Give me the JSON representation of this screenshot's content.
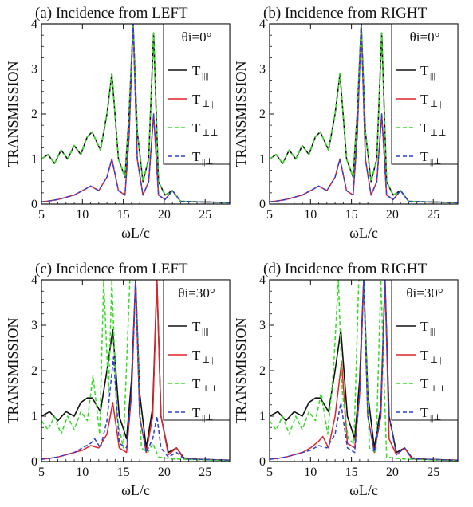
{
  "chart_data": [
    {
      "type": "line",
      "title": "(a) Incidence from LEFT",
      "xlabel": "ωL/c",
      "ylabel": "TRANSMISSION",
      "xlim": [
        5,
        28
      ],
      "ylim": [
        0,
        4
      ],
      "xticks": [
        5,
        10,
        15,
        20,
        25
      ],
      "yticks": [
        0,
        1,
        2,
        3,
        4
      ],
      "legend_header": "θi=0°",
      "legend_position": "top-right",
      "series": [
        {
          "name": "T∥∥",
          "label_main": "T",
          "label_sub": "||||",
          "color": "#111111",
          "dash": "solid",
          "x": [
            5,
            5.8,
            6.6,
            7.4,
            8.2,
            9.0,
            9.8,
            10.6,
            11.2,
            12.2,
            13.0,
            13.6,
            14.4,
            15.2,
            15.7,
            16.2,
            16.7,
            17.4,
            18.1,
            18.7,
            19.3,
            20.1,
            21.0,
            22.0,
            24.0,
            26.0,
            28.0
          ],
          "y": [
            1.0,
            1.1,
            0.9,
            1.2,
            1.0,
            1.3,
            1.1,
            1.5,
            1.6,
            1.2,
            2.0,
            2.9,
            1.0,
            0.6,
            2.0,
            4.0,
            1.6,
            0.5,
            1.0,
            3.8,
            0.5,
            0.2,
            0.3,
            0.06,
            0.05,
            0.04,
            0.03
          ]
        },
        {
          "name": "T⊥∥",
          "label_main": "T",
          "label_sub": "⊥||",
          "color": "#e0242a",
          "dash": "solid",
          "x": [
            5,
            6,
            7,
            8,
            9,
            10,
            11,
            12,
            13,
            13.6,
            14.4,
            15.2,
            15.7,
            16.2,
            16.7,
            17.4,
            18.1,
            18.7,
            19.3,
            20.1,
            21.0,
            22.0,
            24.0,
            26.0,
            28.0
          ],
          "y": [
            0.05,
            0.07,
            0.1,
            0.15,
            0.2,
            0.3,
            0.4,
            0.3,
            0.6,
            1.0,
            0.3,
            0.2,
            1.5,
            4.0,
            1.0,
            0.2,
            0.5,
            2.0,
            0.2,
            0.1,
            0.3,
            0.06,
            0.05,
            0.04,
            0.03
          ]
        },
        {
          "name": "T⊥⊥",
          "label_main": "T",
          "label_sub": "⊥⊥",
          "color": "#33dd22",
          "dash": "dashed",
          "x": [
            5,
            5.8,
            6.6,
            7.4,
            8.2,
            9.0,
            9.8,
            10.6,
            11.2,
            12.2,
            13.0,
            13.6,
            14.4,
            15.2,
            15.7,
            16.2,
            16.7,
            17.4,
            18.1,
            18.7,
            19.3,
            20.1,
            21.0,
            22.0,
            24.0,
            26.0,
            28.0
          ],
          "y": [
            1.0,
            1.1,
            0.9,
            1.2,
            1.0,
            1.3,
            1.1,
            1.5,
            1.6,
            1.2,
            2.0,
            2.9,
            1.0,
            0.6,
            2.0,
            4.0,
            1.6,
            0.5,
            1.0,
            3.8,
            0.5,
            0.2,
            0.3,
            0.06,
            0.05,
            0.04,
            0.03
          ]
        },
        {
          "name": "T∥⊥",
          "label_main": "T",
          "label_sub": "||⊥",
          "color": "#2c3fd6",
          "dash": "dashed",
          "x": [
            5,
            6,
            7,
            8,
            9,
            10,
            11,
            12,
            13,
            13.6,
            14.4,
            15.2,
            15.7,
            16.2,
            16.7,
            17.4,
            18.1,
            18.7,
            19.3,
            20.1,
            21.0,
            22.0,
            24.0,
            26.0,
            28.0
          ],
          "y": [
            0.05,
            0.07,
            0.1,
            0.15,
            0.2,
            0.3,
            0.4,
            0.3,
            0.6,
            1.0,
            0.3,
            0.2,
            1.5,
            4.0,
            1.0,
            0.2,
            0.5,
            2.0,
            0.2,
            0.1,
            0.3,
            0.06,
            0.05,
            0.04,
            0.03
          ]
        }
      ]
    },
    {
      "type": "line",
      "title": "(b) Incidence from RIGHT",
      "xlabel": "ωL/c",
      "ylabel": "TRANSMISSION",
      "xlim": [
        5,
        28
      ],
      "ylim": [
        0,
        4
      ],
      "xticks": [
        5,
        10,
        15,
        20,
        25
      ],
      "yticks": [
        0,
        1,
        2,
        3,
        4
      ],
      "legend_header": "θi=0°",
      "legend_position": "top-right",
      "series": [
        {
          "name": "T∥∥",
          "label_main": "T",
          "label_sub": "||||",
          "color": "#111111",
          "dash": "solid",
          "x": [
            5,
            5.8,
            6.6,
            7.4,
            8.2,
            9.0,
            9.8,
            10.6,
            11.2,
            12.2,
            13.0,
            13.6,
            14.4,
            15.2,
            15.7,
            16.2,
            16.7,
            17.4,
            18.1,
            18.7,
            19.3,
            20.1,
            21.0,
            22.0,
            24.0,
            26.0,
            28.0
          ],
          "y": [
            1.0,
            1.1,
            0.9,
            1.2,
            1.0,
            1.3,
            1.1,
            1.5,
            1.6,
            1.2,
            2.0,
            2.9,
            1.0,
            0.6,
            2.0,
            4.0,
            1.6,
            0.5,
            1.0,
            3.8,
            0.5,
            0.2,
            0.3,
            0.06,
            0.05,
            0.04,
            0.03
          ]
        },
        {
          "name": "T⊥∥",
          "label_main": "T",
          "label_sub": "⊥||",
          "color": "#e0242a",
          "dash": "solid",
          "x": [
            5,
            6,
            7,
            8,
            9,
            10,
            11,
            12,
            13,
            13.6,
            14.4,
            15.2,
            15.7,
            16.2,
            16.7,
            17.4,
            18.1,
            18.7,
            19.3,
            20.1,
            21.0,
            22.0,
            24.0,
            26.0,
            28.0
          ],
          "y": [
            0.05,
            0.07,
            0.1,
            0.15,
            0.2,
            0.3,
            0.4,
            0.3,
            0.6,
            1.0,
            0.3,
            0.2,
            1.5,
            4.0,
            1.0,
            0.2,
            0.5,
            2.0,
            0.2,
            0.1,
            0.3,
            0.06,
            0.05,
            0.04,
            0.03
          ]
        },
        {
          "name": "T⊥⊥",
          "label_main": "T",
          "label_sub": "⊥⊥",
          "color": "#33dd22",
          "dash": "dashed",
          "x": [
            5,
            5.8,
            6.6,
            7.4,
            8.2,
            9.0,
            9.8,
            10.6,
            11.2,
            12.2,
            13.0,
            13.6,
            14.4,
            15.2,
            15.7,
            16.2,
            16.7,
            17.4,
            18.1,
            18.7,
            19.3,
            20.1,
            21.0,
            22.0,
            24.0,
            26.0,
            28.0
          ],
          "y": [
            1.0,
            1.1,
            0.9,
            1.2,
            1.0,
            1.3,
            1.1,
            1.5,
            1.6,
            1.2,
            2.0,
            2.9,
            1.0,
            0.6,
            2.0,
            4.0,
            1.6,
            0.5,
            1.0,
            3.8,
            0.5,
            0.2,
            0.3,
            0.06,
            0.05,
            0.04,
            0.03
          ]
        },
        {
          "name": "T∥⊥",
          "label_main": "T",
          "label_sub": "||⊥",
          "color": "#2c3fd6",
          "dash": "dashed",
          "x": [
            5,
            6,
            7,
            8,
            9,
            10,
            11,
            12,
            13,
            13.6,
            14.4,
            15.2,
            15.7,
            16.2,
            16.7,
            17.4,
            18.1,
            18.7,
            19.3,
            20.1,
            21.0,
            22.0,
            24.0,
            26.0,
            28.0
          ],
          "y": [
            0.05,
            0.07,
            0.1,
            0.15,
            0.2,
            0.3,
            0.4,
            0.3,
            0.6,
            1.0,
            0.3,
            0.2,
            1.5,
            4.0,
            1.0,
            0.2,
            0.5,
            2.0,
            0.2,
            0.1,
            0.3,
            0.06,
            0.05,
            0.04,
            0.03
          ]
        }
      ]
    },
    {
      "type": "line",
      "title": "(c) Incidence from LEFT",
      "xlabel": "ωL/c",
      "ylabel": "TRANSMISSION",
      "xlim": [
        5,
        28
      ],
      "ylim": [
        0,
        4
      ],
      "xticks": [
        5,
        10,
        15,
        20,
        25
      ],
      "yticks": [
        0,
        1,
        2,
        3,
        4
      ],
      "legend_header": "θi=30°",
      "legend_position": "top-right",
      "series": [
        {
          "name": "T∥∥",
          "label_main": "T",
          "label_sub": "||||",
          "color": "#111111",
          "dash": "solid",
          "x": [
            5,
            6,
            7,
            8,
            9,
            9.8,
            10.6,
            11.2,
            12.2,
            13.0,
            13.7,
            14.5,
            15.4,
            16.0,
            16.5,
            17.0,
            17.8,
            18.6,
            19.1,
            19.6,
            20.5,
            21.5,
            22.4,
            24.0,
            26.0,
            28.0
          ],
          "y": [
            1.0,
            1.1,
            0.9,
            1.1,
            1.0,
            1.3,
            1.4,
            1.4,
            1.1,
            2.0,
            2.9,
            1.0,
            0.5,
            1.8,
            4.0,
            1.5,
            0.3,
            1.2,
            4.0,
            1.0,
            0.2,
            0.3,
            0.08,
            0.05,
            0.04,
            0.03
          ]
        },
        {
          "name": "T⊥∥",
          "label_main": "T",
          "label_sub": "⊥||",
          "color": "#e0242a",
          "dash": "solid",
          "x": [
            5,
            6,
            7,
            8,
            9,
            10,
            11,
            12,
            13,
            13.7,
            14.5,
            15.4,
            16.0,
            16.5,
            17.0,
            17.8,
            18.6,
            19.1,
            19.6,
            20.5,
            21.5,
            22.4,
            24.0,
            26.0,
            28.0
          ],
          "y": [
            0.05,
            0.07,
            0.1,
            0.15,
            0.2,
            0.25,
            0.35,
            0.3,
            0.6,
            1.3,
            0.3,
            0.2,
            1.5,
            4.0,
            1.0,
            0.2,
            1.0,
            4.0,
            1.0,
            0.15,
            0.3,
            0.06,
            0.05,
            0.04,
            0.03
          ]
        },
        {
          "name": "T⊥⊥",
          "label_main": "T",
          "label_sub": "⊥⊥",
          "color": "#33dd22",
          "dash": "dashed",
          "x": [
            5,
            5.8,
            6.6,
            7.4,
            8.2,
            9.0,
            9.8,
            10.6,
            11.3,
            12.1,
            12.6,
            13.2,
            13.6,
            14.2,
            15.0,
            15.8,
            16.5,
            17.2,
            18.0,
            18.6,
            19.3,
            20.0,
            21.0,
            22.5,
            24.0,
            26.0,
            28.0
          ],
          "y": [
            0.9,
            0.7,
            1.0,
            0.6,
            1.0,
            0.7,
            1.1,
            0.9,
            1.9,
            0.6,
            4.0,
            1.5,
            4.0,
            1.0,
            0.3,
            4.0,
            4.0,
            0.3,
            0.2,
            0.4,
            0.1,
            0.08,
            0.06,
            0.05,
            0.04,
            0.03,
            0.02
          ]
        },
        {
          "name": "T∥⊥",
          "label_main": "T",
          "label_sub": "||⊥",
          "color": "#2c3fd6",
          "dash": "dashed",
          "x": [
            5,
            6,
            7,
            8,
            9,
            10,
            11,
            11.5,
            12.2,
            13.0,
            13.8,
            14.5,
            15.4,
            16.0,
            16.5,
            17.0,
            17.8,
            18.6,
            19.1,
            19.6,
            20.5,
            21.5,
            22.4,
            24.0,
            26.0,
            28.0
          ],
          "y": [
            0.05,
            0.07,
            0.1,
            0.15,
            0.2,
            0.3,
            0.4,
            0.5,
            0.3,
            0.9,
            2.3,
            0.4,
            0.3,
            1.5,
            4.0,
            1.0,
            0.2,
            0.5,
            1.0,
            0.3,
            0.1,
            0.2,
            0.06,
            0.05,
            0.04,
            0.03
          ]
        }
      ]
    },
    {
      "type": "line",
      "title": "(d) Incidence from RIGHT",
      "xlabel": "ωL/c",
      "ylabel": "TRANSMISSION",
      "xlim": [
        5,
        28
      ],
      "ylim": [
        0,
        4
      ],
      "xticks": [
        5,
        10,
        15,
        20,
        25
      ],
      "yticks": [
        0,
        1,
        2,
        3,
        4
      ],
      "legend_header": "θi=30°",
      "legend_position": "top-right",
      "series": [
        {
          "name": "T∥∥",
          "label_main": "T",
          "label_sub": "||||",
          "color": "#111111",
          "dash": "solid",
          "x": [
            5,
            6,
            7,
            8,
            9,
            9.8,
            10.6,
            11.2,
            12.2,
            13.0,
            13.7,
            14.5,
            15.4,
            16.0,
            16.5,
            17.0,
            17.8,
            18.6,
            19.1,
            19.6,
            20.5,
            21.5,
            22.4,
            24.0,
            26.0,
            28.0
          ],
          "y": [
            1.0,
            1.1,
            0.9,
            1.1,
            1.0,
            1.3,
            1.4,
            1.4,
            1.1,
            2.0,
            2.9,
            1.0,
            0.5,
            1.8,
            4.0,
            1.5,
            0.3,
            1.2,
            4.0,
            1.0,
            0.2,
            0.3,
            0.08,
            0.05,
            0.04,
            0.03
          ]
        },
        {
          "name": "T⊥∥",
          "label_main": "T",
          "label_sub": "⊥||",
          "color": "#e0242a",
          "dash": "solid",
          "x": [
            5,
            6,
            7,
            8,
            9,
            10,
            11,
            11.5,
            12.2,
            13.0,
            13.8,
            14.5,
            15.4,
            16.0,
            16.5,
            17.0,
            17.8,
            18.6,
            19.1,
            19.6,
            20.5,
            21.5,
            22.4,
            24.0,
            26.0,
            28.0
          ],
          "y": [
            0.05,
            0.07,
            0.1,
            0.15,
            0.2,
            0.3,
            0.45,
            0.55,
            0.3,
            1.0,
            2.2,
            0.4,
            0.3,
            1.5,
            4.0,
            1.0,
            0.2,
            1.0,
            4.0,
            0.5,
            0.15,
            0.3,
            0.06,
            0.05,
            0.04,
            0.03
          ]
        },
        {
          "name": "T⊥⊥",
          "label_main": "T",
          "label_sub": "⊥⊥",
          "color": "#33dd22",
          "dash": "dashed",
          "x": [
            5,
            5.8,
            6.6,
            7.4,
            8.2,
            9.0,
            9.8,
            10.6,
            11.3,
            12.1,
            12.8,
            13.4,
            13.9,
            14.6,
            15.3,
            15.9,
            16.5,
            17.2,
            18.0,
            18.6,
            19.3,
            20.0,
            21.0,
            22.5,
            24.0,
            26.0,
            28.0
          ],
          "y": [
            0.9,
            0.7,
            1.0,
            0.6,
            1.0,
            0.7,
            1.1,
            0.9,
            1.5,
            0.6,
            2.0,
            4.0,
            1.5,
            0.5,
            0.4,
            4.0,
            4.0,
            0.3,
            0.2,
            4.0,
            0.1,
            0.08,
            0.06,
            0.05,
            0.04,
            0.03,
            0.02
          ]
        },
        {
          "name": "T∥⊥",
          "label_main": "T",
          "label_sub": "||⊥",
          "color": "#2c3fd6",
          "dash": "dashed",
          "x": [
            5,
            6,
            7,
            8,
            9,
            10,
            11,
            12,
            13,
            13.7,
            14.5,
            15.4,
            16.0,
            16.5,
            17.0,
            17.8,
            18.6,
            19.1,
            19.6,
            20.5,
            21.5,
            22.4,
            24.0,
            26.0,
            28.0
          ],
          "y": [
            0.05,
            0.07,
            0.1,
            0.15,
            0.2,
            0.25,
            0.35,
            0.3,
            0.6,
            1.3,
            0.3,
            0.2,
            1.5,
            4.0,
            1.0,
            0.2,
            1.0,
            4.0,
            1.0,
            0.15,
            0.3,
            0.06,
            0.05,
            0.04,
            0.03
          ]
        }
      ]
    }
  ]
}
